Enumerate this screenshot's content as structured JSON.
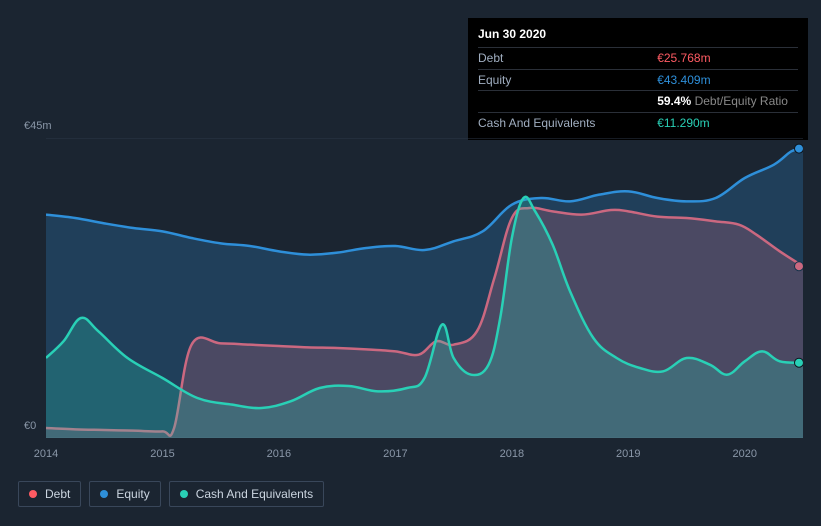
{
  "chart": {
    "type": "area",
    "background_color": "#1b2531",
    "plot_background": "#1b2531",
    "grid_color": "#2b3646",
    "font_family": "Arial",
    "label_color": "#8a97a8",
    "y_axis": {
      "min": 0,
      "max": 45,
      "unit_prefix": "€",
      "unit_suffix": "m",
      "ticks": [
        {
          "value": 0,
          "label": "€0"
        },
        {
          "value": 45,
          "label": "€45m"
        }
      ],
      "tick_fontsize": 11
    },
    "x_axis": {
      "type": "year",
      "min": 2014,
      "max": 2020.5,
      "ticks": [
        2014,
        2015,
        2016,
        2017,
        2018,
        2019,
        2020
      ],
      "tick_fontsize": 11
    },
    "line_width": 2.5,
    "fill_opacity": 0.25,
    "series": [
      {
        "id": "debt",
        "name": "Debt",
        "color": "#ff5b63",
        "fill_color": "#ff5b63",
        "endpoint_marker": true,
        "data": [
          [
            2014.0,
            1.5
          ],
          [
            2014.25,
            1.3
          ],
          [
            2014.5,
            1.2
          ],
          [
            2014.75,
            1.1
          ],
          [
            2015.0,
            1.0
          ],
          [
            2015.1,
            1.5
          ],
          [
            2015.25,
            14.0
          ],
          [
            2015.5,
            14.2
          ],
          [
            2015.75,
            14.0
          ],
          [
            2016.0,
            13.8
          ],
          [
            2016.25,
            13.6
          ],
          [
            2016.5,
            13.5
          ],
          [
            2016.75,
            13.3
          ],
          [
            2017.0,
            13.0
          ],
          [
            2017.2,
            12.5
          ],
          [
            2017.35,
            14.5
          ],
          [
            2017.5,
            14.0
          ],
          [
            2017.7,
            16.0
          ],
          [
            2017.85,
            24.0
          ],
          [
            2018.0,
            33.0
          ],
          [
            2018.15,
            34.5
          ],
          [
            2018.35,
            34.0
          ],
          [
            2018.6,
            33.5
          ],
          [
            2018.85,
            34.2
          ],
          [
            2019.0,
            34.0
          ],
          [
            2019.25,
            33.2
          ],
          [
            2019.5,
            33.0
          ],
          [
            2019.75,
            32.5
          ],
          [
            2019.95,
            32.0
          ],
          [
            2020.1,
            30.5
          ],
          [
            2020.3,
            28.0
          ],
          [
            2020.5,
            25.768
          ]
        ]
      },
      {
        "id": "equity",
        "name": "Equity",
        "color": "#2e8fd9",
        "fill_color": "#2e8fd9",
        "endpoint_marker": true,
        "data": [
          [
            2014.0,
            33.5
          ],
          [
            2014.25,
            33.0
          ],
          [
            2014.5,
            32.2
          ],
          [
            2014.75,
            31.5
          ],
          [
            2015.0,
            31.0
          ],
          [
            2015.25,
            30.0
          ],
          [
            2015.5,
            29.2
          ],
          [
            2015.75,
            28.8
          ],
          [
            2016.0,
            28.0
          ],
          [
            2016.25,
            27.5
          ],
          [
            2016.5,
            27.8
          ],
          [
            2016.75,
            28.5
          ],
          [
            2017.0,
            28.8
          ],
          [
            2017.25,
            28.2
          ],
          [
            2017.5,
            29.5
          ],
          [
            2017.75,
            31.0
          ],
          [
            2018.0,
            35.0
          ],
          [
            2018.25,
            36.0
          ],
          [
            2018.5,
            35.5
          ],
          [
            2018.75,
            36.5
          ],
          [
            2019.0,
            37.0
          ],
          [
            2019.25,
            36.0
          ],
          [
            2019.5,
            35.5
          ],
          [
            2019.75,
            36.0
          ],
          [
            2020.0,
            39.0
          ],
          [
            2020.25,
            41.0
          ],
          [
            2020.4,
            43.0
          ],
          [
            2020.5,
            43.409
          ]
        ]
      },
      {
        "id": "cash",
        "name": "Cash And Equivalents",
        "color": "#29d0b6",
        "fill_color": "#29d0b6",
        "endpoint_marker": true,
        "data": [
          [
            2014.0,
            12.0
          ],
          [
            2014.15,
            14.5
          ],
          [
            2014.3,
            18.0
          ],
          [
            2014.45,
            16.0
          ],
          [
            2014.7,
            12.0
          ],
          [
            2015.0,
            9.0
          ],
          [
            2015.3,
            6.0
          ],
          [
            2015.6,
            5.0
          ],
          [
            2015.85,
            4.5
          ],
          [
            2016.1,
            5.5
          ],
          [
            2016.35,
            7.5
          ],
          [
            2016.6,
            7.8
          ],
          [
            2016.85,
            7.0
          ],
          [
            2017.1,
            7.5
          ],
          [
            2017.25,
            9.0
          ],
          [
            2017.4,
            17.0
          ],
          [
            2017.5,
            12.0
          ],
          [
            2017.65,
            9.5
          ],
          [
            2017.8,
            11.0
          ],
          [
            2017.9,
            18.0
          ],
          [
            2018.0,
            30.0
          ],
          [
            2018.1,
            36.0
          ],
          [
            2018.2,
            34.0
          ],
          [
            2018.35,
            29.0
          ],
          [
            2018.5,
            22.0
          ],
          [
            2018.7,
            15.0
          ],
          [
            2018.9,
            12.0
          ],
          [
            2019.1,
            10.5
          ],
          [
            2019.3,
            10.0
          ],
          [
            2019.5,
            12.0
          ],
          [
            2019.7,
            11.0
          ],
          [
            2019.85,
            9.5
          ],
          [
            2020.0,
            11.5
          ],
          [
            2020.15,
            13.0
          ],
          [
            2020.3,
            11.5
          ],
          [
            2020.5,
            11.29
          ]
        ]
      }
    ]
  },
  "tooltip": {
    "date": "Jun 30 2020",
    "rows": [
      {
        "label": "Debt",
        "value": "€25.768m",
        "color": "#ff5b63"
      },
      {
        "label": "Equity",
        "value": "€43.409m",
        "color": "#2e8fd9"
      },
      {
        "label": "",
        "value_pct": "59.4%",
        "value_txt": "Debt/Equity Ratio"
      },
      {
        "label": "Cash And Equivalents",
        "value": "€11.290m",
        "color": "#29d0b6"
      }
    ]
  },
  "legend": [
    {
      "id": "debt",
      "label": "Debt",
      "color": "#ff5b63"
    },
    {
      "id": "equity",
      "label": "Equity",
      "color": "#2e8fd9"
    },
    {
      "id": "cash",
      "label": "Cash And Equivalents",
      "color": "#29d0b6"
    }
  ]
}
